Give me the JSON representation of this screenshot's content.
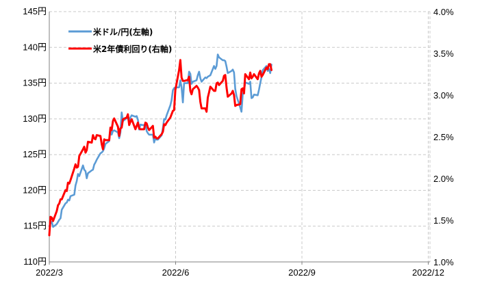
{
  "chart_data": {
    "type": "line",
    "x_tick_labels": [
      "2022/3",
      "2022/6",
      "2022/9",
      "2022/12"
    ],
    "x_range": [
      "2022-03-01",
      "2022-12-31"
    ],
    "y_left": {
      "ticks": [
        "110円",
        "115円",
        "120円",
        "125円",
        "130円",
        "135円",
        "140円",
        "145円"
      ],
      "range": [
        110,
        145
      ]
    },
    "y_right": {
      "ticks": [
        "1.0%",
        "1.5%",
        "2.0%",
        "2.5%",
        "3.0%",
        "3.5%",
        "4.0%"
      ],
      "range": [
        1.0,
        4.0
      ]
    },
    "grid": true,
    "legend_position": "top-left",
    "series": [
      {
        "name": "米ドル/円(左軸)",
        "axis": "left",
        "color": "#5b9bd5",
        "points": [
          [
            "2022-03-01",
            115.0
          ],
          [
            "2022-03-02",
            115.4
          ],
          [
            "2022-03-03",
            115.6
          ],
          [
            "2022-03-04",
            114.9
          ],
          [
            "2022-03-07",
            115.3
          ],
          [
            "2022-03-08",
            115.6
          ],
          [
            "2022-03-09",
            115.9
          ],
          [
            "2022-03-10",
            116.1
          ],
          [
            "2022-03-11",
            117.3
          ],
          [
            "2022-03-14",
            118.2
          ],
          [
            "2022-03-15",
            118.3
          ],
          [
            "2022-03-16",
            118.7
          ],
          [
            "2022-03-17",
            118.6
          ],
          [
            "2022-03-18",
            119.2
          ],
          [
            "2022-03-21",
            119.4
          ],
          [
            "2022-03-22",
            120.7
          ],
          [
            "2022-03-23",
            121.3
          ],
          [
            "2022-03-24",
            122.3
          ],
          [
            "2022-03-25",
            122.0
          ],
          [
            "2022-03-28",
            123.5
          ],
          [
            "2022-03-29",
            122.9
          ],
          [
            "2022-03-30",
            122.7
          ],
          [
            "2022-03-31",
            121.7
          ],
          [
            "2022-04-01",
            122.4
          ],
          [
            "2022-04-04",
            122.8
          ],
          [
            "2022-04-05",
            122.9
          ],
          [
            "2022-04-06",
            123.6
          ],
          [
            "2022-04-07",
            123.9
          ],
          [
            "2022-04-08",
            124.3
          ],
          [
            "2022-04-11",
            125.2
          ],
          [
            "2022-04-12",
            125.3
          ],
          [
            "2022-04-13",
            125.5
          ],
          [
            "2022-04-14",
            125.9
          ],
          [
            "2022-04-15",
            126.5
          ],
          [
            "2022-04-18",
            126.9
          ],
          [
            "2022-04-19",
            128.6
          ],
          [
            "2022-04-20",
            127.8
          ],
          [
            "2022-04-21",
            128.3
          ],
          [
            "2022-04-22",
            128.4
          ],
          [
            "2022-04-25",
            128.1
          ],
          [
            "2022-04-26",
            127.3
          ],
          [
            "2022-04-27",
            128.1
          ],
          [
            "2022-04-28",
            130.9
          ],
          [
            "2022-04-29",
            129.7
          ],
          [
            "2022-05-02",
            130.1
          ],
          [
            "2022-05-03",
            130.1
          ],
          [
            "2022-05-04",
            129.6
          ],
          [
            "2022-05-05",
            130.2
          ],
          [
            "2022-05-06",
            130.5
          ],
          [
            "2022-05-09",
            130.3
          ],
          [
            "2022-05-10",
            130.4
          ],
          [
            "2022-05-11",
            129.9
          ],
          [
            "2022-05-12",
            128.5
          ],
          [
            "2022-05-13",
            129.2
          ],
          [
            "2022-05-16",
            129.1
          ],
          [
            "2022-05-17",
            129.4
          ],
          [
            "2022-05-18",
            128.3
          ],
          [
            "2022-05-19",
            128.0
          ],
          [
            "2022-05-20",
            127.8
          ],
          [
            "2022-05-23",
            127.8
          ],
          [
            "2022-05-24",
            126.7
          ],
          [
            "2022-05-25",
            127.3
          ],
          [
            "2022-05-26",
            127.1
          ],
          [
            "2022-05-27",
            127.1
          ],
          [
            "2022-05-30",
            127.7
          ],
          [
            "2022-05-31",
            128.7
          ],
          [
            "2022-06-01",
            130.0
          ],
          [
            "2022-06-02",
            129.9
          ],
          [
            "2022-06-03",
            130.5
          ],
          [
            "2022-06-06",
            131.9
          ],
          [
            "2022-06-07",
            132.6
          ],
          [
            "2022-06-08",
            134.0
          ],
          [
            "2022-06-09",
            134.3
          ],
          [
            "2022-06-10",
            134.4
          ],
          [
            "2022-06-13",
            134.4
          ],
          [
            "2022-06-14",
            135.4
          ],
          [
            "2022-06-15",
            134.4
          ],
          [
            "2022-06-16",
            132.3
          ],
          [
            "2022-06-17",
            135.0
          ],
          [
            "2022-06-20",
            135.0
          ],
          [
            "2022-06-21",
            136.6
          ],
          [
            "2022-06-22",
            136.3
          ],
          [
            "2022-06-23",
            134.9
          ],
          [
            "2022-06-24",
            135.2
          ],
          [
            "2022-06-27",
            135.4
          ],
          [
            "2022-06-28",
            136.1
          ],
          [
            "2022-06-29",
            136.6
          ],
          [
            "2022-06-30",
            135.7
          ],
          [
            "2022-07-01",
            135.2
          ],
          [
            "2022-07-04",
            135.8
          ],
          [
            "2022-07-05",
            135.7
          ],
          [
            "2022-07-06",
            135.9
          ],
          [
            "2022-07-07",
            136.0
          ],
          [
            "2022-07-08",
            136.1
          ],
          [
            "2022-07-11",
            137.4
          ],
          [
            "2022-07-12",
            137.0
          ],
          [
            "2022-07-13",
            137.4
          ],
          [
            "2022-07-14",
            139.0
          ],
          [
            "2022-07-15",
            138.6
          ],
          [
            "2022-07-18",
            138.2
          ],
          [
            "2022-07-19",
            138.2
          ],
          [
            "2022-07-20",
            138.1
          ],
          [
            "2022-07-21",
            137.3
          ],
          [
            "2022-07-22",
            136.4
          ],
          [
            "2022-07-25",
            136.7
          ],
          [
            "2022-07-26",
            136.9
          ],
          [
            "2022-07-27",
            136.5
          ],
          [
            "2022-07-28",
            134.2
          ],
          [
            "2022-07-29",
            133.2
          ],
          [
            "2022-08-01",
            131.6
          ],
          [
            "2022-08-02",
            131.0
          ],
          [
            "2022-08-03",
            133.5
          ],
          [
            "2022-08-04",
            133.9
          ],
          [
            "2022-08-05",
            135.1
          ],
          [
            "2022-08-08",
            134.9
          ],
          [
            "2022-08-09",
            135.2
          ],
          [
            "2022-08-10",
            132.9
          ],
          [
            "2022-08-11",
            133.0
          ],
          [
            "2022-08-12",
            133.4
          ],
          [
            "2022-08-15",
            133.3
          ],
          [
            "2022-08-16",
            134.1
          ],
          [
            "2022-08-17",
            135.0
          ],
          [
            "2022-08-18",
            135.8
          ],
          [
            "2022-08-19",
            136.8
          ],
          [
            "2022-08-22",
            137.4
          ],
          [
            "2022-08-23",
            136.7
          ],
          [
            "2022-08-24",
            137.0
          ],
          [
            "2022-08-25",
            136.4
          ],
          [
            "2022-08-26",
            137.6
          ]
        ]
      },
      {
        "name": "米2年債利回り(右軸)",
        "axis": "right",
        "color": "#ff0000",
        "points": [
          [
            "2022-03-01",
            1.32
          ],
          [
            "2022-03-02",
            1.54
          ],
          [
            "2022-03-03",
            1.53
          ],
          [
            "2022-03-04",
            1.49
          ],
          [
            "2022-03-07",
            1.61
          ],
          [
            "2022-03-08",
            1.68
          ],
          [
            "2022-03-09",
            1.7
          ],
          [
            "2022-03-10",
            1.75
          ],
          [
            "2022-03-11",
            1.75
          ],
          [
            "2022-03-14",
            1.86
          ],
          [
            "2022-03-15",
            1.85
          ],
          [
            "2022-03-16",
            1.95
          ],
          [
            "2022-03-17",
            1.94
          ],
          [
            "2022-03-18",
            1.98
          ],
          [
            "2022-03-21",
            2.12
          ],
          [
            "2022-03-22",
            2.17
          ],
          [
            "2022-03-23",
            2.13
          ],
          [
            "2022-03-24",
            2.14
          ],
          [
            "2022-03-25",
            2.27
          ],
          [
            "2022-03-28",
            2.35
          ],
          [
            "2022-03-29",
            2.38
          ],
          [
            "2022-03-30",
            2.31
          ],
          [
            "2022-03-31",
            2.34
          ],
          [
            "2022-04-01",
            2.44
          ],
          [
            "2022-04-04",
            2.43
          ],
          [
            "2022-04-05",
            2.52
          ],
          [
            "2022-04-06",
            2.48
          ],
          [
            "2022-04-07",
            2.47
          ],
          [
            "2022-04-08",
            2.52
          ],
          [
            "2022-04-11",
            2.51
          ],
          [
            "2022-04-12",
            2.41
          ],
          [
            "2022-04-13",
            2.35
          ],
          [
            "2022-04-14",
            2.47
          ],
          [
            "2022-04-15",
            2.46
          ],
          [
            "2022-04-18",
            2.46
          ],
          [
            "2022-04-19",
            2.61
          ],
          [
            "2022-04-20",
            2.58
          ],
          [
            "2022-04-21",
            2.69
          ],
          [
            "2022-04-22",
            2.72
          ],
          [
            "2022-04-25",
            2.62
          ],
          [
            "2022-04-26",
            2.51
          ],
          [
            "2022-04-27",
            2.6
          ],
          [
            "2022-04-28",
            2.61
          ],
          [
            "2022-04-29",
            2.71
          ],
          [
            "2022-05-02",
            2.73
          ],
          [
            "2022-05-03",
            2.77
          ],
          [
            "2022-05-04",
            2.64
          ],
          [
            "2022-05-05",
            2.68
          ],
          [
            "2022-05-06",
            2.71
          ],
          [
            "2022-05-09",
            2.59
          ],
          [
            "2022-05-10",
            2.63
          ],
          [
            "2022-05-11",
            2.67
          ],
          [
            "2022-05-12",
            2.6
          ],
          [
            "2022-05-13",
            2.59
          ],
          [
            "2022-05-16",
            2.59
          ],
          [
            "2022-05-17",
            2.67
          ],
          [
            "2022-05-18",
            2.66
          ],
          [
            "2022-05-19",
            2.61
          ],
          [
            "2022-05-20",
            2.58
          ],
          [
            "2022-05-23",
            2.63
          ],
          [
            "2022-05-24",
            2.49
          ],
          [
            "2022-05-25",
            2.5
          ],
          [
            "2022-05-26",
            2.48
          ],
          [
            "2022-05-27",
            2.48
          ],
          [
            "2022-05-30",
            2.53
          ],
          [
            "2022-05-31",
            2.56
          ],
          [
            "2022-06-01",
            2.65
          ],
          [
            "2022-06-02",
            2.64
          ],
          [
            "2022-06-03",
            2.67
          ],
          [
            "2022-06-06",
            2.73
          ],
          [
            "2022-06-07",
            2.77
          ],
          [
            "2022-06-08",
            2.81
          ],
          [
            "2022-06-09",
            2.82
          ],
          [
            "2022-06-10",
            3.06
          ],
          [
            "2022-06-13",
            3.3
          ],
          [
            "2022-06-14",
            3.42
          ],
          [
            "2022-06-15",
            3.21
          ],
          [
            "2022-06-16",
            3.17
          ],
          [
            "2022-06-17",
            3.17
          ],
          [
            "2022-06-20",
            3.18
          ],
          [
            "2022-06-21",
            3.22
          ],
          [
            "2022-06-22",
            3.05
          ],
          [
            "2022-06-23",
            3.01
          ],
          [
            "2022-06-24",
            3.07
          ],
          [
            "2022-06-27",
            3.11
          ],
          [
            "2022-06-28",
            3.09
          ],
          [
            "2022-06-29",
            3.06
          ],
          [
            "2022-06-30",
            2.92
          ],
          [
            "2022-07-01",
            2.84
          ],
          [
            "2022-07-04",
            2.84
          ],
          [
            "2022-07-05",
            2.8
          ],
          [
            "2022-07-06",
            2.97
          ],
          [
            "2022-07-07",
            3.03
          ],
          [
            "2022-07-08",
            3.1
          ],
          [
            "2022-07-11",
            3.05
          ],
          [
            "2022-07-12",
            3.05
          ],
          [
            "2022-07-13",
            3.14
          ],
          [
            "2022-07-14",
            3.15
          ],
          [
            "2022-07-15",
            3.12
          ],
          [
            "2022-07-18",
            3.17
          ],
          [
            "2022-07-19",
            3.23
          ],
          [
            "2022-07-20",
            3.24
          ],
          [
            "2022-07-21",
            3.09
          ],
          [
            "2022-07-22",
            2.98
          ],
          [
            "2022-07-25",
            3.02
          ],
          [
            "2022-07-26",
            3.05
          ],
          [
            "2022-07-27",
            3.0
          ],
          [
            "2022-07-28",
            2.87
          ],
          [
            "2022-07-29",
            2.88
          ],
          [
            "2022-08-01",
            2.89
          ],
          [
            "2022-08-02",
            3.07
          ],
          [
            "2022-08-03",
            3.08
          ],
          [
            "2022-08-04",
            3.02
          ],
          [
            "2022-08-05",
            3.25
          ],
          [
            "2022-08-08",
            3.19
          ],
          [
            "2022-08-09",
            3.27
          ],
          [
            "2022-08-10",
            3.2
          ],
          [
            "2022-08-11",
            3.22
          ],
          [
            "2022-08-12",
            3.25
          ],
          [
            "2022-08-15",
            3.19
          ],
          [
            "2022-08-16",
            3.26
          ],
          [
            "2022-08-17",
            3.29
          ],
          [
            "2022-08-18",
            3.22
          ],
          [
            "2022-08-19",
            3.24
          ],
          [
            "2022-08-22",
            3.33
          ],
          [
            "2022-08-23",
            3.31
          ],
          [
            "2022-08-24",
            3.37
          ],
          [
            "2022-08-25",
            3.37
          ],
          [
            "2022-08-26",
            3.3
          ]
        ]
      }
    ]
  }
}
